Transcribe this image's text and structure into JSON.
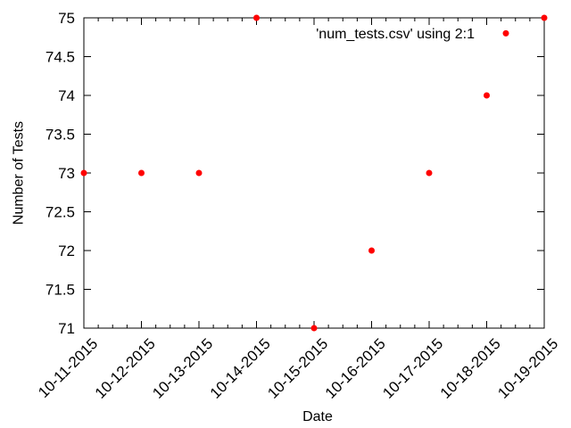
{
  "chart_data": {
    "type": "scatter",
    "title": "",
    "xlabel": "Date",
    "ylabel": "Number of Tests",
    "x_tick_labels": [
      "10-11-2015",
      "10-12-2015",
      "10-13-2015",
      "10-14-2015",
      "10-15-2015",
      "10-16-2015",
      "10-17-2015",
      "10-18-2015",
      "10-19-2015"
    ],
    "y_tick_labels": [
      "71",
      "71.5",
      "72",
      "72.5",
      "73",
      "73.5",
      "74",
      "74.5",
      "75"
    ],
    "xlim": [
      "2015-10-11",
      "2015-10-19"
    ],
    "ylim": [
      71,
      75
    ],
    "grid": false,
    "legend_position": "top-right",
    "series": [
      {
        "name": "'num_tests.csv' using 2:1",
        "color": "#ff0000",
        "marker": "circle",
        "points": [
          {
            "x": "2015-10-11",
            "y": 73
          },
          {
            "x": "2015-10-12",
            "y": 73
          },
          {
            "x": "2015-10-13",
            "y": 73
          },
          {
            "x": "2015-10-14",
            "y": 75
          },
          {
            "x": "2015-10-15",
            "y": 71
          },
          {
            "x": "2015-10-16",
            "y": 72
          },
          {
            "x": "2015-10-17",
            "y": 73
          },
          {
            "x": "2015-10-18",
            "y": 74
          },
          {
            "x": "2015-10-19",
            "y": 75
          }
        ]
      }
    ],
    "legend_sample": {
      "y": 74.8
    }
  }
}
